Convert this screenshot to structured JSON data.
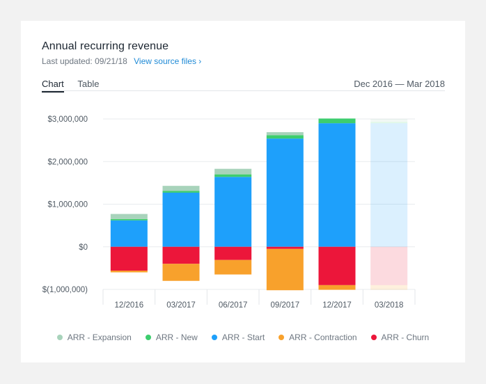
{
  "header": {
    "title": "Annual recurring revenue",
    "last_updated_label": "Last updated:",
    "last_updated_value": "09/21/18",
    "source_link": "View source files ›"
  },
  "tabs": [
    {
      "label": "Chart",
      "active": true
    },
    {
      "label": "Table",
      "active": false
    }
  ],
  "date_range": "Dec 2016 — Mar 2018",
  "chart_data": {
    "type": "bar",
    "stacked": true,
    "categories": [
      "12/2016",
      "03/2017",
      "06/2017",
      "09/2017",
      "12/2017",
      "03/2018"
    ],
    "projected_categories": [
      "03/2018"
    ],
    "ylim": [
      -1000000,
      3000000
    ],
    "yticks": [
      3000000,
      2000000,
      1000000,
      0,
      -1000000
    ],
    "ytick_labels": [
      "$3,000,000",
      "$2,000,000",
      "$1,000,000",
      "$0",
      "$(1,000,000)"
    ],
    "grid": true,
    "legend_position": "bottom",
    "series": [
      {
        "name": "ARR - Start",
        "color": "#1ea0fb",
        "values": [
          620000,
          1270000,
          1640000,
          2540000,
          2900000,
          2900000
        ]
      },
      {
        "name": "ARR - New",
        "color": "#3dcd6e",
        "values": [
          30000,
          40000,
          60000,
          80000,
          110000,
          30000
        ]
      },
      {
        "name": "ARR - Expansion",
        "color": "#a8d3bb",
        "values": [
          120000,
          120000,
          130000,
          70000,
          0,
          70000
        ]
      },
      {
        "name": "ARR - Churn",
        "color": "#ec163a",
        "values": [
          -560000,
          -400000,
          -310000,
          -50000,
          -900000,
          -900000
        ]
      },
      {
        "name": "ARR - Contraction",
        "color": "#f8a12c",
        "values": [
          -40000,
          -400000,
          -340000,
          -970000,
          -110000,
          -110000
        ]
      }
    ]
  },
  "legend": [
    {
      "label": "ARR - Expansion",
      "color": "#a8d3bb"
    },
    {
      "label": "ARR - New",
      "color": "#3dcd6e"
    },
    {
      "label": "ARR - Start",
      "color": "#1ea0fb"
    },
    {
      "label": "ARR - Contraction",
      "color": "#f8a12c"
    },
    {
      "label": "ARR - Churn",
      "color": "#ec163a"
    }
  ]
}
